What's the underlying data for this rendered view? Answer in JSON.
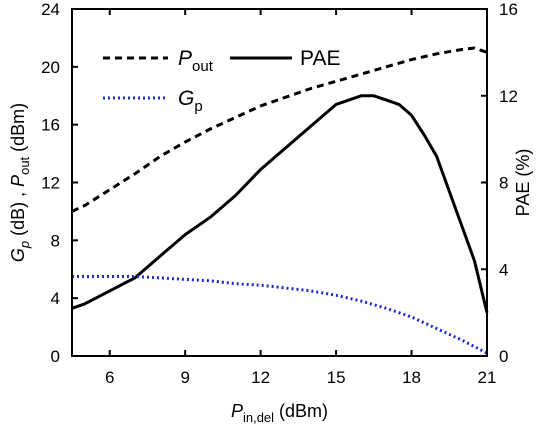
{
  "chart_data": {
    "type": "line",
    "x_axis": {
      "label_main": "P",
      "label_sub": "in,del",
      "label_unit": " (dBm)",
      "range": [
        4.5,
        21
      ],
      "ticks": [
        6,
        9,
        12,
        15,
        18,
        21
      ],
      "tick_labels": [
        "6",
        "9",
        "12",
        "15",
        "18",
        "21"
      ]
    },
    "y_left": {
      "label_parts": [
        "G",
        "p",
        " (dB) , ",
        "P",
        "out",
        " (dBm)"
      ],
      "range": [
        0,
        24
      ],
      "ticks": [
        0,
        4,
        8,
        12,
        16,
        20,
        24
      ],
      "tick_labels": [
        "0",
        "4",
        "8",
        "12",
        "16",
        "20",
        "24"
      ]
    },
    "y_right": {
      "label": "PAE (%)",
      "range": [
        0,
        16
      ],
      "ticks": [
        0,
        4,
        8,
        12,
        16
      ],
      "tick_labels": [
        "0",
        "4",
        "8",
        "12",
        "16"
      ]
    },
    "legend_placement": "top-left",
    "series": [
      {
        "name": "P",
        "name_sub": "out",
        "axis": "left",
        "style": "dashed",
        "color": "#000000",
        "x": [
          4.5,
          5,
          6,
          7,
          8,
          9,
          10,
          11,
          12,
          13,
          14,
          15,
          16,
          17,
          18,
          19,
          20,
          20.5,
          21
        ],
        "y": [
          10.0,
          10.4,
          11.5,
          12.6,
          13.8,
          14.8,
          15.7,
          16.5,
          17.3,
          17.9,
          18.5,
          19.0,
          19.5,
          20.0,
          20.5,
          20.9,
          21.2,
          21.3,
          21.0
        ]
      },
      {
        "name": "PAE",
        "axis": "right",
        "style": "solid",
        "color": "#000000",
        "x": [
          4.5,
          5,
          6,
          7,
          8,
          9,
          10,
          11,
          12,
          13,
          14,
          15,
          16,
          16.5,
          17,
          17.5,
          18,
          18.5,
          19,
          20,
          20.5,
          21
        ],
        "y": [
          2.2,
          2.4,
          3.0,
          3.6,
          4.6,
          5.6,
          6.4,
          7.4,
          8.6,
          9.6,
          10.6,
          11.6,
          12.0,
          12.0,
          11.8,
          11.6,
          11.1,
          10.2,
          9.2,
          6.0,
          4.4,
          2.0
        ]
      },
      {
        "name": "G",
        "name_sub": "p",
        "axis": "left",
        "style": "dotted",
        "color": "#1a2bcc",
        "x": [
          4.5,
          5,
          6,
          7,
          8,
          9,
          10,
          11,
          12,
          13,
          14,
          15,
          16,
          17,
          18,
          19,
          20,
          21
        ],
        "y": [
          5.5,
          5.5,
          5.5,
          5.5,
          5.4,
          5.3,
          5.2,
          5.0,
          4.9,
          4.7,
          4.5,
          4.2,
          3.8,
          3.3,
          2.7,
          1.9,
          1.1,
          0.2
        ]
      }
    ]
  }
}
